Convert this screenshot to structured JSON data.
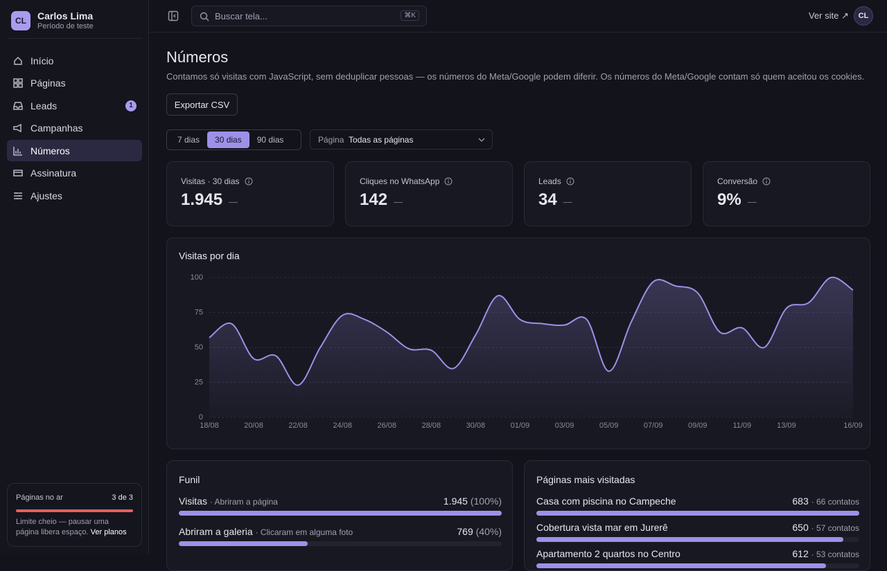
{
  "sidebar": {
    "avatar": "CL",
    "user_name": "Carlos Lima",
    "user_plan": "Período de teste",
    "nav": [
      {
        "label": "Início"
      },
      {
        "label": "Páginas"
      },
      {
        "label": "Leads",
        "badge": "1"
      },
      {
        "label": "Campanhas"
      },
      {
        "label": "Números",
        "active": true
      },
      {
        "label": "Assinatura"
      },
      {
        "label": "Ajustes"
      }
    ],
    "usage": {
      "title": "Páginas no ar",
      "count": "3 de 3",
      "note": "Limite cheio — pausar uma página libera espaço.",
      "link": "Ver planos"
    }
  },
  "topbar": {
    "search_placeholder": "Buscar tela...",
    "shortcut": "⌘K",
    "site_link": "Ver site ↗",
    "avatar": "CL"
  },
  "page": {
    "title": "Números",
    "description": "Contamos só visitas com JavaScript, sem deduplicar pessoas — os números do Meta/Google podem diferir. Os números do Meta/Google contam só quem aceitou os cookies.",
    "export_button": "Exportar CSV",
    "ranges": [
      "7 dias",
      "30 dias",
      "90 dias"
    ],
    "active_range": 1,
    "filter_label": "Página",
    "filter_value": "Todas as páginas"
  },
  "stats": [
    {
      "label": "Visitas · 30 dias",
      "value": "1.945",
      "delta": "—"
    },
    {
      "label": "Cliques no WhatsApp",
      "value": "142",
      "delta": "—"
    },
    {
      "label": "Leads",
      "value": "34",
      "delta": "—"
    },
    {
      "label": "Conversão",
      "value": "9%",
      "delta": "—"
    }
  ],
  "chart_data": {
    "type": "line",
    "title": "Visitas por dia",
    "categories": [
      "18/08",
      null,
      "20/08",
      null,
      "22/08",
      null,
      "24/08",
      null,
      "26/08",
      null,
      "28/08",
      null,
      "30/08",
      null,
      "01/09",
      null,
      "03/09",
      null,
      "05/09",
      null,
      "07/09",
      null,
      "09/09",
      null,
      "11/09",
      null,
      "13/09",
      null,
      null,
      "16/09"
    ],
    "values": [
      57,
      67,
      42,
      44,
      23,
      50,
      73,
      70,
      61,
      49,
      48,
      35,
      59,
      87,
      70,
      67,
      66,
      70,
      33,
      68,
      97,
      94,
      89,
      61,
      64,
      50,
      78,
      82,
      100,
      91
    ],
    "color": "#9d90e8",
    "ylim": [
      0,
      100
    ],
    "yticks": [
      0,
      25,
      50,
      75,
      100
    ],
    "grid": true
  },
  "funnel": {
    "title": "Funil",
    "color": "#9d90e8",
    "steps": [
      {
        "name": "Visitas",
        "description": "· Abriram a página",
        "count": "1.945",
        "percent": 100,
        "percent_label": "(100%)"
      },
      {
        "name": "Abriram a galeria",
        "description": "· Clicaram em alguma foto",
        "count": "769",
        "percent": 40,
        "percent_label": "(40%)"
      }
    ]
  },
  "top_pages": {
    "title": "Páginas mais visitadas",
    "color": "#9d90e8",
    "rows": [
      {
        "name": "Casa com piscina no Campeche",
        "visits": 683,
        "contacts": "· 66 contatos"
      },
      {
        "name": "Cobertura vista mar em Jurerê",
        "visits": 650,
        "contacts": "· 57 contatos"
      },
      {
        "name": "Apartamento 2 quartos no Centro",
        "visits": 612,
        "contacts": "· 53 contatos"
      }
    ]
  }
}
